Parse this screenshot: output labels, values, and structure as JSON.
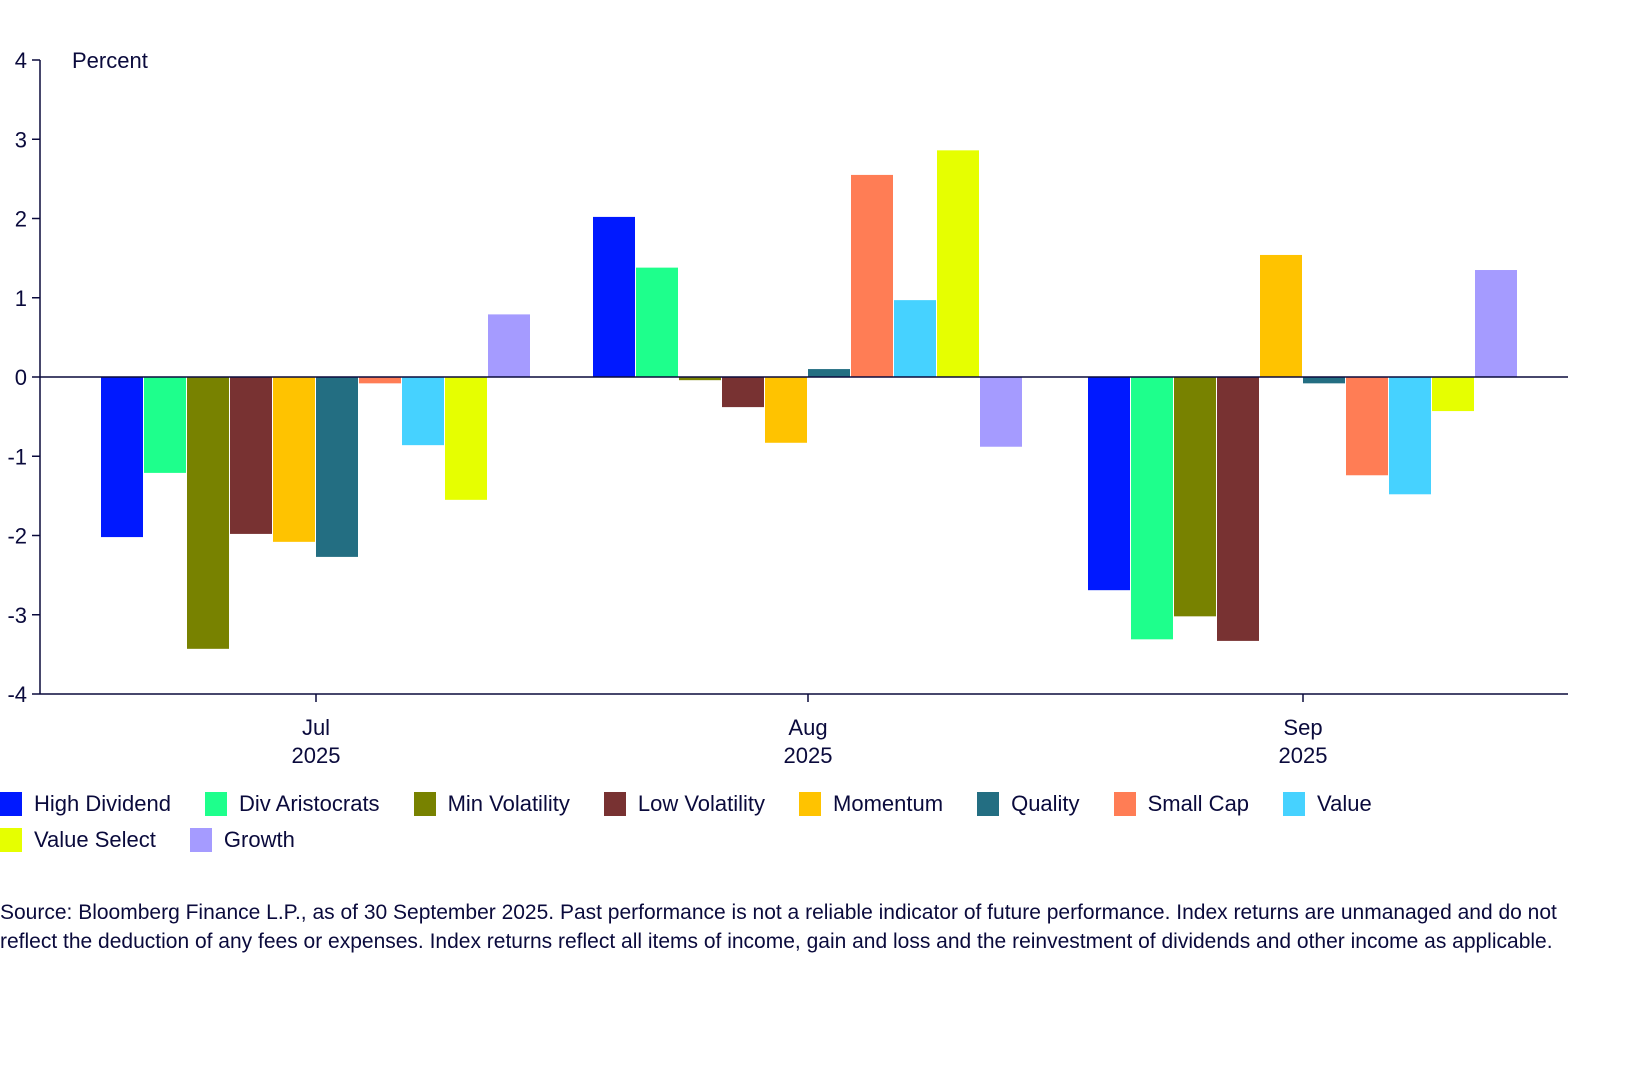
{
  "chart_data": {
    "type": "bar",
    "ylabel": "Percent",
    "ylim": [
      -4,
      4
    ],
    "yticks": [
      4,
      3,
      2,
      1,
      0,
      -1,
      -2,
      -3,
      -4
    ],
    "grid": false,
    "legend_position": "bottom",
    "categories": [
      {
        "month": "Jul",
        "year": "2025"
      },
      {
        "month": "Aug",
        "year": "2025"
      },
      {
        "month": "Sep",
        "year": "2025"
      }
    ],
    "series": [
      {
        "name": "High Dividend",
        "color": "#0019ff",
        "values": [
          -2.02,
          2.02,
          -2.69
        ]
      },
      {
        "name": "Div Aristocrats",
        "color": "#1eff8c",
        "values": [
          -1.21,
          1.38,
          -3.31
        ]
      },
      {
        "name": "Min Volatility",
        "color": "#788200",
        "values": [
          -3.43,
          -0.04,
          -3.02
        ]
      },
      {
        "name": "Low Volatility",
        "color": "#783232",
        "values": [
          -1.98,
          -0.38,
          -3.33
        ]
      },
      {
        "name": "Momentum",
        "color": "#ffc300",
        "values": [
          -2.08,
          -0.83,
          1.54
        ]
      },
      {
        "name": "Quality",
        "color": "#236e82",
        "values": [
          -2.27,
          0.1,
          -0.08
        ]
      },
      {
        "name": "Small Cap",
        "color": "#ff7d55",
        "values": [
          -0.08,
          2.55,
          -1.24
        ]
      },
      {
        "name": "Value",
        "color": "#46d2ff",
        "values": [
          -0.86,
          0.97,
          -1.48
        ]
      },
      {
        "name": "Value Select",
        "color": "#e6ff00",
        "values": [
          -1.55,
          2.86,
          -0.43
        ]
      },
      {
        "name": "Growth",
        "color": "#a59bff",
        "values": [
          0.79,
          -0.88,
          1.35
        ]
      }
    ]
  },
  "source_note": "Source: Bloomberg Finance L.P., as of 30 September 2025. Past performance is not a reliable indicator of future performance. Index returns are unmanaged and do not reflect the deduction of any fees or expenses. Index returns reflect all items of income, gain and loss and the reinvestment of dividends and other income as applicable."
}
